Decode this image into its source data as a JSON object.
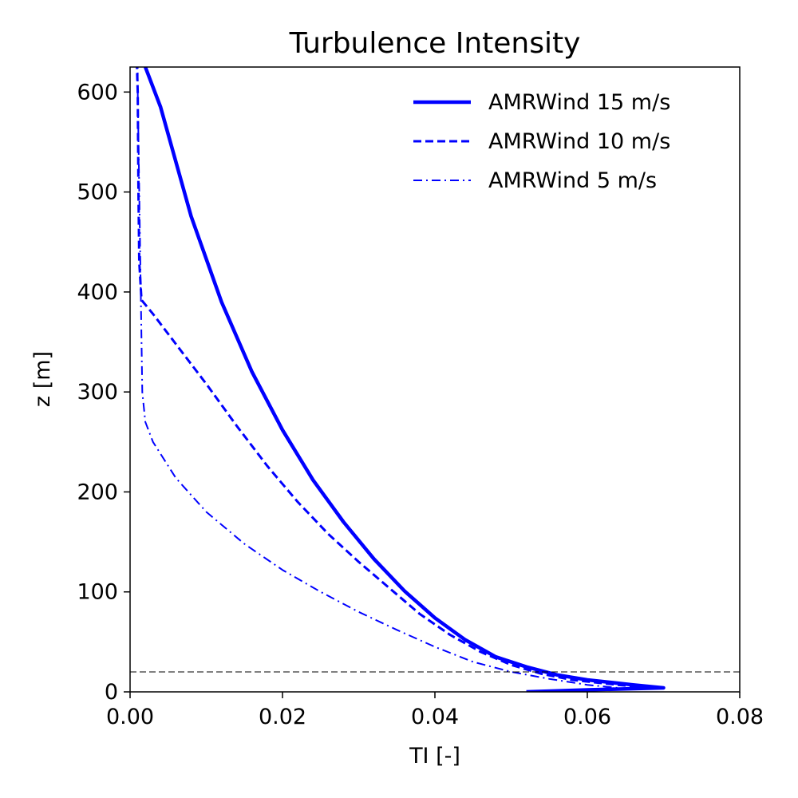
{
  "chart_data": {
    "type": "line",
    "title": "Turbulence Intensity",
    "xlabel": "TI [-]",
    "ylabel": "z [m]",
    "xlim": [
      0.0,
      0.08
    ],
    "ylim": [
      0,
      625
    ],
    "xticks": [
      "0.00",
      "0.02",
      "0.04",
      "0.06",
      "0.08"
    ],
    "yticks": [
      "0",
      "100",
      "200",
      "300",
      "400",
      "500",
      "600"
    ],
    "grid": false,
    "legend_position": "top-right",
    "reference_line": {
      "y": 20,
      "style": "dashed",
      "color": "#000000"
    },
    "series": [
      {
        "name": "AMRWind 15 m/s",
        "style": "solid",
        "color": "#0000ff",
        "points": [
          [
            0.052,
            0
          ],
          [
            0.06,
            2
          ],
          [
            0.07,
            4
          ],
          [
            0.066,
            7
          ],
          [
            0.06,
            12
          ],
          [
            0.056,
            17
          ],
          [
            0.052,
            25
          ],
          [
            0.048,
            35
          ],
          [
            0.044,
            52
          ],
          [
            0.04,
            74
          ],
          [
            0.036,
            101
          ],
          [
            0.032,
            133
          ],
          [
            0.028,
            170
          ],
          [
            0.024,
            212
          ],
          [
            0.02,
            262
          ],
          [
            0.016,
            320
          ],
          [
            0.012,
            390
          ],
          [
            0.008,
            476
          ],
          [
            0.004,
            585
          ],
          [
            0.002,
            625
          ]
        ]
      },
      {
        "name": "AMRWind 10 m/s",
        "style": "dashed",
        "color": "#0000ff",
        "points": [
          [
            0.06,
            2
          ],
          [
            0.068,
            4
          ],
          [
            0.064,
            7
          ],
          [
            0.058,
            12
          ],
          [
            0.054,
            18
          ],
          [
            0.05,
            27
          ],
          [
            0.046,
            40
          ],
          [
            0.042,
            57
          ],
          [
            0.038,
            78
          ],
          [
            0.034,
            104
          ],
          [
            0.03,
            130
          ],
          [
            0.026,
            158
          ],
          [
            0.022,
            190
          ],
          [
            0.018,
            226
          ],
          [
            0.014,
            266
          ],
          [
            0.01,
            308
          ],
          [
            0.006,
            348
          ],
          [
            0.003,
            378
          ],
          [
            0.0015,
            392
          ],
          [
            0.0012,
            430
          ],
          [
            0.0011,
            500
          ],
          [
            0.001,
            600
          ],
          [
            0.0009,
            625
          ]
        ]
      },
      {
        "name": "AMRWind 5 m/s",
        "style": "dashdot",
        "color": "#0000ff",
        "points": [
          [
            0.06,
            2
          ],
          [
            0.064,
            4
          ],
          [
            0.06,
            7
          ],
          [
            0.055,
            13
          ],
          [
            0.05,
            20
          ],
          [
            0.045,
            30
          ],
          [
            0.04,
            45
          ],
          [
            0.035,
            62
          ],
          [
            0.03,
            80
          ],
          [
            0.025,
            100
          ],
          [
            0.02,
            122
          ],
          [
            0.015,
            148
          ],
          [
            0.01,
            180
          ],
          [
            0.006,
            214
          ],
          [
            0.003,
            250
          ],
          [
            0.002,
            270
          ],
          [
            0.0016,
            300
          ],
          [
            0.0014,
            400
          ],
          [
            0.0012,
            500
          ],
          [
            0.001,
            600
          ],
          [
            0.001,
            625
          ]
        ]
      }
    ]
  }
}
